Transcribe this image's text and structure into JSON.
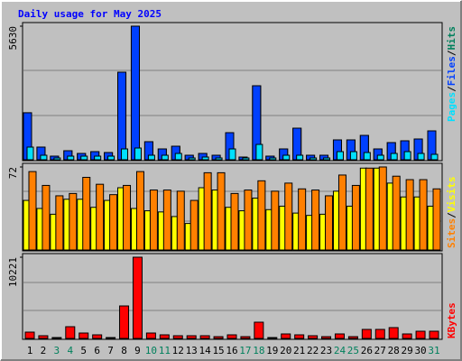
{
  "title": "Daily usage for May 2025",
  "legend_separator": "/",
  "day_label_colors": [
    "#000000",
    "#000000",
    "#00805c",
    "#00805c",
    "#000000",
    "#000000",
    "#000000",
    "#000000",
    "#000000",
    "#00805c",
    "#00805c",
    "#000000",
    "#000000",
    "#000000",
    "#000000",
    "#000000",
    "#00805c",
    "#00805c",
    "#000000",
    "#000000",
    "#000000",
    "#000000",
    "#000000",
    "#00805c",
    "#00805c",
    "#000000",
    "#000000",
    "#000000",
    "#000000",
    "#000000",
    "#00805c"
  ],
  "chart_data": [
    {
      "type": "bar",
      "categories": [
        "1",
        "2",
        "3",
        "4",
        "5",
        "6",
        "7",
        "8",
        "9",
        "10",
        "11",
        "12",
        "13",
        "14",
        "15",
        "16",
        "17",
        "18",
        "19",
        "20",
        "21",
        "22",
        "23",
        "24",
        "25",
        "26",
        "27",
        "28",
        "29",
        "30",
        "31"
      ],
      "ylim": [
        0,
        5630
      ],
      "yticks": [
        5630
      ],
      "series": [
        {
          "name": "Hits",
          "color": "#00805c",
          "values": [
            1980,
            533,
            152,
            380,
            266,
            342,
            304,
            3690,
            5630,
            761,
            456,
            570,
            190,
            266,
            190,
            1141,
            114,
            3119,
            152,
            456,
            1331,
            190,
            190,
            837,
            837,
            1027,
            456,
            723,
            799,
            875,
            1217
          ]
        },
        {
          "name": "Files",
          "color": "#0040ff",
          "values": [
            1980,
            533,
            152,
            380,
            266,
            342,
            304,
            3690,
            5630,
            761,
            456,
            570,
            190,
            266,
            190,
            1141,
            114,
            3119,
            152,
            456,
            1331,
            190,
            190,
            837,
            837,
            1027,
            456,
            723,
            799,
            875,
            1217
          ]
        },
        {
          "name": "Pages",
          "color": "#00e0ff",
          "values": [
            533,
            190,
            76,
            152,
            152,
            152,
            152,
            456,
            494,
            190,
            190,
            266,
            76,
            114,
            76,
            456,
            76,
            646,
            76,
            190,
            190,
            76,
            76,
            342,
            342,
            304,
            190,
            266,
            342,
            266,
            228
          ]
        }
      ]
    },
    {
      "type": "bar",
      "ylim": [
        0,
        72
      ],
      "yticks": [
        72
      ],
      "series": [
        {
          "name": "Visits",
          "color": "#ffff00",
          "values": [
            43,
            36,
            31,
            44,
            44,
            37,
            43,
            54,
            36,
            34,
            33,
            29,
            23,
            54,
            52,
            37,
            34,
            45,
            35,
            38,
            32,
            30,
            31,
            51,
            38,
            71,
            71,
            58,
            46,
            46,
            38
          ]
        },
        {
          "name": "Sites",
          "color": "#ff8000",
          "values": [
            68,
            56,
            47,
            49,
            63,
            57,
            48,
            56,
            68,
            52,
            52,
            51,
            43,
            67,
            67,
            49,
            52,
            60,
            51,
            58,
            53,
            52,
            47,
            65,
            56,
            71,
            72,
            64,
            61,
            61,
            53
          ]
        }
      ]
    },
    {
      "type": "bar",
      "ylim": [
        0,
        10221
      ],
      "yticks": [
        10221
      ],
      "series": [
        {
          "name": "KBytes",
          "color": "#ff0000",
          "values": [
            795,
            341,
            114,
            1476,
            681,
            454,
            114,
            4088,
            10221,
            681,
            454,
            341,
            341,
            341,
            227,
            454,
            227,
            2044,
            114,
            568,
            454,
            341,
            227,
            568,
            227,
            1136,
            1136,
            1363,
            568,
            908,
            908
          ]
        }
      ]
    }
  ]
}
